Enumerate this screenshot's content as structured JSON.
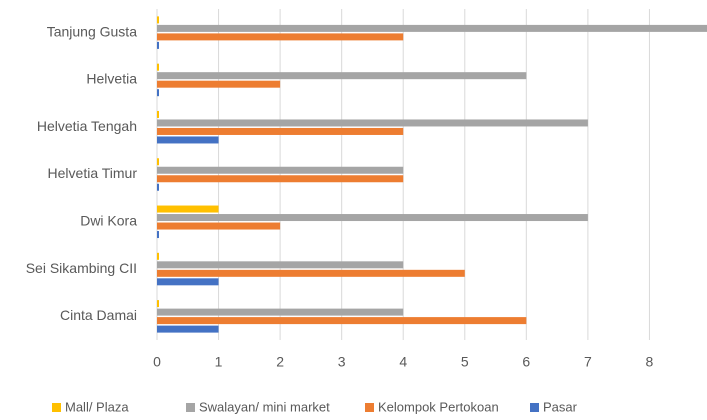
{
  "chart_data": {
    "type": "barh",
    "categories": [
      "Tanjung Gusta",
      "Helvetia",
      "Helvetia Tengah",
      "Helvetia Timur",
      "Dwi Kora",
      "Sei Sikambing CII",
      "Cinta Damai"
    ],
    "series": [
      {
        "name": "Mall/ Plaza",
        "color": "#ffc000",
        "values": [
          0,
          0,
          0,
          0,
          1,
          0,
          0
        ]
      },
      {
        "name": "Swalayan/ mini market",
        "color": "#a5a5a5",
        "values": [
          9,
          6,
          7,
          4,
          7,
          4,
          4
        ]
      },
      {
        "name": "Kelompok Pertokoan",
        "color": "#ed7d31",
        "values": [
          4,
          2,
          4,
          4,
          2,
          5,
          6
        ]
      },
      {
        "name": "Pasar",
        "color": "#4472c4",
        "values": [
          0,
          0,
          1,
          0,
          0,
          1,
          1
        ]
      }
    ],
    "xlim": [
      0,
      9
    ],
    "xticks": [
      0,
      1,
      2,
      3,
      4,
      5,
      6,
      7,
      8,
      9
    ],
    "grid": true,
    "legend": "bottom"
  }
}
